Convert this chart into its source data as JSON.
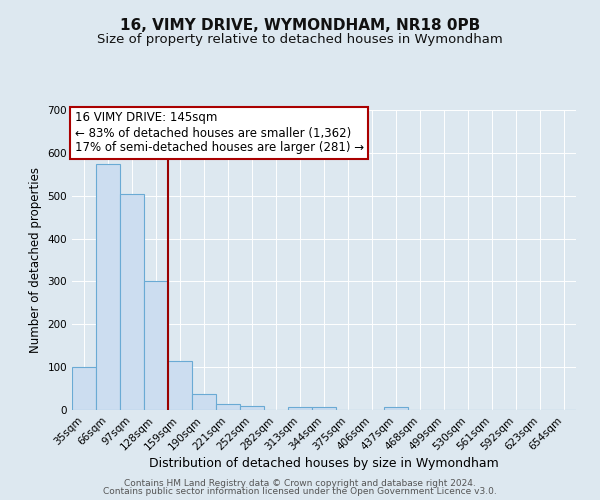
{
  "title": "16, VIMY DRIVE, WYMONDHAM, NR18 0PB",
  "subtitle": "Size of property relative to detached houses in Wymondham",
  "xlabel": "Distribution of detached houses by size in Wymondham",
  "ylabel": "Number of detached properties",
  "footer_line1": "Contains HM Land Registry data © Crown copyright and database right 2024.",
  "footer_line2": "Contains public sector information licensed under the Open Government Licence v3.0.",
  "categories": [
    "35sqm",
    "66sqm",
    "97sqm",
    "128sqm",
    "159sqm",
    "190sqm",
    "221sqm",
    "252sqm",
    "282sqm",
    "313sqm",
    "344sqm",
    "375sqm",
    "406sqm",
    "437sqm",
    "468sqm",
    "499sqm",
    "530sqm",
    "561sqm",
    "592sqm",
    "623sqm",
    "654sqm"
  ],
  "values": [
    100,
    575,
    505,
    300,
    115,
    37,
    14,
    9,
    0,
    7,
    7,
    0,
    0,
    7,
    0,
    0,
    0,
    0,
    0,
    0,
    0
  ],
  "bar_color": "#ccddf0",
  "bar_edge_color": "#6aaad4",
  "bar_edge_width": 0.8,
  "vline_color": "#990000",
  "annotation_line1": "16 VIMY DRIVE: 145sqm",
  "annotation_line2": "← 83% of detached houses are smaller (1,362)",
  "annotation_line3": "17% of semi-detached houses are larger (281) →",
  "annotation_box_color": "#aa0000",
  "annotation_fill": "#ffffff",
  "ylim": [
    0,
    700
  ],
  "yticks": [
    0,
    100,
    200,
    300,
    400,
    500,
    600,
    700
  ],
  "background_color": "#dde8f0",
  "plot_bg_color": "#dde8f0",
  "grid_color": "#ffffff",
  "title_fontsize": 11,
  "subtitle_fontsize": 9.5,
  "xlabel_fontsize": 9,
  "ylabel_fontsize": 8.5,
  "tick_fontsize": 7.5,
  "annotation_fontsize": 8.5
}
